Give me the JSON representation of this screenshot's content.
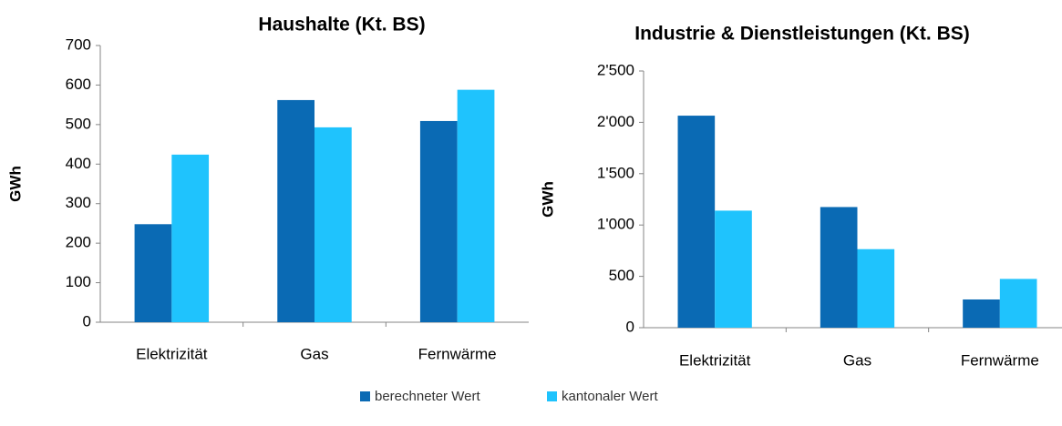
{
  "chart_data": [
    {
      "type": "bar",
      "title": "Haushalte (Kt. BS)",
      "y_label": "GWh",
      "categories": [
        "Elektrizität",
        "Gas",
        "Fernwärme"
      ],
      "series": [
        {
          "name": "berechneter Wert",
          "color": "#0a6ab4",
          "values": [
            248,
            562,
            509
          ]
        },
        {
          "name": "kantonaler Wert",
          "color": "#1fc3fd",
          "values": [
            424,
            493,
            588
          ]
        }
      ],
      "ylim": [
        0,
        700
      ],
      "yticks": [
        0,
        100,
        200,
        300,
        400,
        500,
        600,
        700
      ]
    },
    {
      "type": "bar",
      "title": "Industrie & Dienstleistungen (Kt. BS)",
      "y_label": "GWh",
      "categories": [
        "Elektrizität",
        "Gas",
        "Fernwärme"
      ],
      "series": [
        {
          "color": "#0a6ab4",
          "values": [
            2065,
            1175,
            275
          ]
        },
        {
          "color": "#1fc3fd",
          "values": [
            1140,
            765,
            475
          ]
        }
      ],
      "ylim": [
        0,
        2500
      ],
      "yticks": [
        0,
        500,
        {
          "value": 1000,
          "label": "1'000"
        },
        {
          "value": 1500,
          "label": "1'500"
        },
        {
          "value": 2000,
          "label": "2'000"
        },
        {
          "value": 2500,
          "label": "2'500"
        }
      ]
    }
  ]
}
